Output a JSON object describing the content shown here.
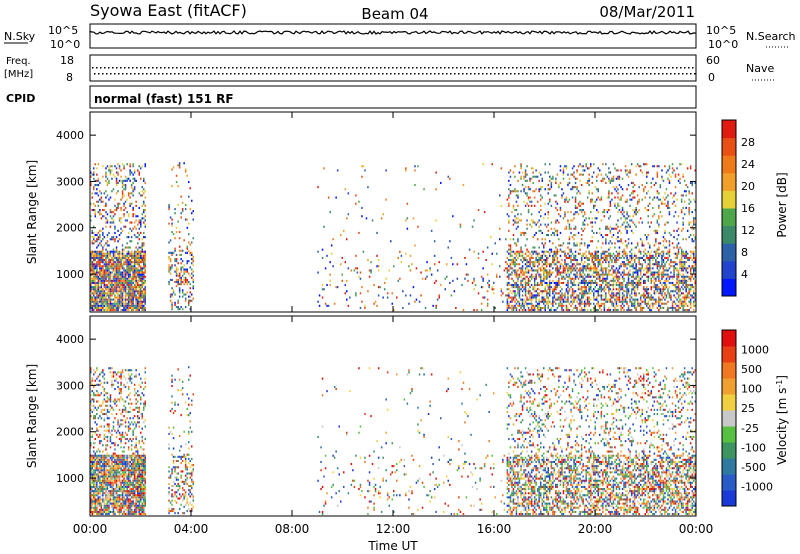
{
  "header": {
    "station": "Syowa East (fitACF)",
    "beam": "Beam 04",
    "date": "08/Mar/2011"
  },
  "panels": {
    "nsky_label": "N.Sky",
    "nsearch_label": "N.Search",
    "freq_label_1": "Freq.",
    "freq_label_2": "[MHz]",
    "nave_label": "Nave",
    "cpid_label": "CPID",
    "cpid_text": "normal (fast) 151 RF",
    "noise_left_ticks": [
      "10^5",
      "10^0"
    ],
    "noise_right_ticks": [
      "10^5",
      "10^0"
    ],
    "freq_left_ticks": [
      "18",
      "8"
    ],
    "freq_right_ticks": [
      "60",
      "0"
    ]
  },
  "colorbars": {
    "power": {
      "label": "Power [dB]",
      "ticks": [
        "28",
        "24",
        "20",
        "16",
        "12",
        "8",
        "4"
      ],
      "colors": [
        "#0018ff",
        "#2244cc",
        "#2e62a8",
        "#3a8a6a",
        "#4ea64a",
        "#e6d038",
        "#f0a02a",
        "#ee7a1a",
        "#e85014",
        "#e01c10"
      ]
    },
    "velocity": {
      "label_main": "Velocity [m s",
      "label_sup": "-1",
      "label_end": "]",
      "ticks": [
        "1000",
        "500",
        "100",
        "25",
        "-25",
        "-100",
        "-500",
        "-1000"
      ],
      "colors": [
        "#1a3ad8",
        "#2a5cc8",
        "#2e7aa0",
        "#3c9460",
        "#58c040",
        "#c8c8c8",
        "#f0d040",
        "#f0a030",
        "#f07820",
        "#e84014",
        "#e01010"
      ]
    }
  },
  "axes": {
    "ylabel": "Slant Range [km]",
    "yticks": [
      "1000",
      "2000",
      "3000",
      "4000"
    ],
    "xlabel": "Time UT",
    "xticks": [
      "00:00",
      "04:00",
      "08:00",
      "12:00",
      "16:00",
      "20:00",
      "00:00"
    ]
  },
  "chart_data": [
    {
      "type": "heatmap",
      "title": "Power",
      "xlabel": "Time UT",
      "ylabel": "Slant Range [km]",
      "xlim": [
        0,
        24
      ],
      "ylim": [
        180,
        4500
      ],
      "colorbar_range": [
        0,
        30
      ],
      "colorbar_label": "Power [dB]",
      "scatter_regions": [
        {
          "t0": 0.0,
          "t1": 2.2,
          "r0": 200,
          "r1": 3400,
          "density": 0.55,
          "value": 16
        },
        {
          "t0": 3.1,
          "t1": 4.1,
          "r0": 220,
          "r1": 3400,
          "density": 0.2,
          "value": 20
        },
        {
          "t0": 9.0,
          "t1": 16.5,
          "r0": 200,
          "r1": 3400,
          "density": 0.03,
          "value": 16
        },
        {
          "t0": 16.5,
          "t1": 24.0,
          "r0": 200,
          "r1": 3400,
          "density": 0.35,
          "value": 14
        }
      ]
    },
    {
      "type": "heatmap",
      "title": "Velocity",
      "xlabel": "Time UT",
      "ylabel": "Slant Range [km]",
      "xlim": [
        0,
        24
      ],
      "ylim": [
        180,
        4500
      ],
      "colorbar_range": [
        -1000,
        1000
      ],
      "colorbar_label": "Velocity [m s-1]",
      "scatter_regions": [
        {
          "t0": 0.0,
          "t1": 2.2,
          "r0": 200,
          "r1": 3400,
          "density": 0.55,
          "value": 300
        },
        {
          "t0": 3.1,
          "t1": 4.1,
          "r0": 220,
          "r1": 3400,
          "density": 0.2,
          "value": -100
        },
        {
          "t0": 9.0,
          "t1": 16.5,
          "r0": 200,
          "r1": 3400,
          "density": 0.03,
          "value": 100
        },
        {
          "t0": 16.5,
          "t1": 24.0,
          "r0": 200,
          "r1": 3400,
          "density": 0.35,
          "value": 200
        }
      ]
    }
  ]
}
